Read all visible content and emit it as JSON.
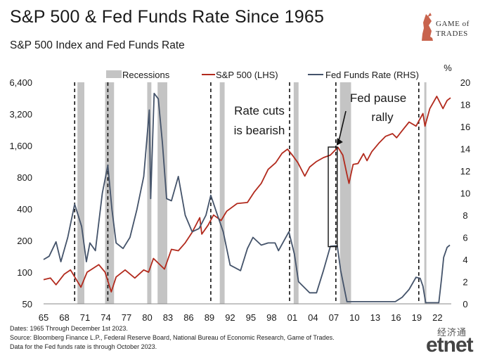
{
  "title": "S&P 500 & Fed Funds Rate Since 1965",
  "subtitle": "S&P 500 Index and Fed Funds Rate",
  "logo": {
    "line1": "GAME of",
    "line2": "TRADES"
  },
  "footnotes": [
    "Dates: 1965 Through December 1st 2023.",
    "Source: Bloomberg Finance L.P., Federal Reserve Board, National Bureau of Economic Research, Game of Trades.",
    "Data for the Fed funds rate is through October 2023."
  ],
  "watermark": {
    "cn": "经济通",
    "en": "etnet"
  },
  "chart_data": {
    "type": "line",
    "legend": [
      "Recessions",
      "S&P 500 (LHS)",
      "Fed Funds Rate (RHS)"
    ],
    "legend_position": "top",
    "left_axis": {
      "scale": "log",
      "range": [
        50,
        6400
      ],
      "ticks": [
        "6,400",
        "3,200",
        "1,600",
        "800",
        "400",
        "200",
        "100",
        "50"
      ],
      "tick_values": [
        6400,
        3200,
        1600,
        800,
        400,
        200,
        100,
        50
      ]
    },
    "right_axis": {
      "unit": "%",
      "range": [
        0,
        20
      ],
      "ticks": [
        "20",
        "18",
        "16",
        "14",
        "12",
        "10",
        "8",
        "6",
        "4",
        "2",
        "0"
      ],
      "tick_values": [
        20,
        18,
        16,
        14,
        12,
        10,
        8,
        6,
        4,
        2,
        0
      ]
    },
    "x_axis": {
      "range": [
        1965,
        2024
      ],
      "ticks": [
        "65",
        "68",
        "71",
        "74",
        "77",
        "80",
        "83",
        "86",
        "89",
        "92",
        "95",
        "98",
        "01",
        "04",
        "07",
        "10",
        "13",
        "16",
        "19",
        "22"
      ],
      "tick_years": [
        1965,
        1968,
        1971,
        1974,
        1977,
        1980,
        1983,
        1986,
        1989,
        1992,
        1995,
        1998,
        2001,
        2004,
        2007,
        2010,
        2013,
        2016,
        2019,
        2022
      ]
    },
    "recessions": [
      [
        1969.9,
        1970.9
      ],
      [
        1973.9,
        1975.2
      ],
      [
        1980.0,
        1980.6
      ],
      [
        1981.5,
        1982.9
      ],
      [
        1990.5,
        1991.2
      ],
      [
        2001.2,
        2001.9
      ],
      [
        2007.9,
        2009.5
      ],
      [
        2020.1,
        2020.4
      ]
    ],
    "rate_cut_markers": [
      1969.5,
      1974.3,
      1989.2,
      2000.6,
      2007.3,
      2019.3
    ],
    "annotations": [
      {
        "text": "Rate cuts\nis bearish"
      },
      {
        "text": "Fed pause\nrally"
      }
    ],
    "highlight_box": {
      "x_range": [
        2006.2,
        2007.5
      ],
      "sp500_range": [
        175,
        1550
      ]
    },
    "series": [
      {
        "name": "S&P 500 (LHS)",
        "color": "#b22a1d",
        "axis": "left",
        "points": [
          [
            1965,
            85
          ],
          [
            1966,
            88
          ],
          [
            1966.8,
            76
          ],
          [
            1968,
            96
          ],
          [
            1968.9,
            105
          ],
          [
            1970.4,
            72
          ],
          [
            1971.3,
            100
          ],
          [
            1973.0,
            118
          ],
          [
            1973.9,
            100
          ],
          [
            1974.8,
            65
          ],
          [
            1975.5,
            90
          ],
          [
            1976.8,
            105
          ],
          [
            1978.2,
            88
          ],
          [
            1979.5,
            105
          ],
          [
            1980.2,
            100
          ],
          [
            1980.9,
            135
          ],
          [
            1982.5,
            107
          ],
          [
            1983.5,
            165
          ],
          [
            1984.5,
            160
          ],
          [
            1985.5,
            190
          ],
          [
            1986.5,
            240
          ],
          [
            1987.6,
            330
          ],
          [
            1987.9,
            230
          ],
          [
            1988.8,
            280
          ],
          [
            1989.6,
            350
          ],
          [
            1990.7,
            310
          ],
          [
            1991.5,
            380
          ],
          [
            1993,
            450
          ],
          [
            1994.5,
            460
          ],
          [
            1995.5,
            580
          ],
          [
            1996.5,
            700
          ],
          [
            1997.5,
            950
          ],
          [
            1998.6,
            1100
          ],
          [
            1999.5,
            1350
          ],
          [
            2000.3,
            1480
          ],
          [
            2001.0,
            1300
          ],
          [
            2001.8,
            1100
          ],
          [
            2002.8,
            820
          ],
          [
            2003.5,
            1000
          ],
          [
            2004.5,
            1130
          ],
          [
            2005.5,
            1230
          ],
          [
            2006.5,
            1300
          ],
          [
            2007.6,
            1540
          ],
          [
            2008.3,
            1300
          ],
          [
            2008.9,
            850
          ],
          [
            2009.2,
            700
          ],
          [
            2009.8,
            1060
          ],
          [
            2010.5,
            1080
          ],
          [
            2011.3,
            1340
          ],
          [
            2011.8,
            1150
          ],
          [
            2012.5,
            1400
          ],
          [
            2013.5,
            1680
          ],
          [
            2014.5,
            1960
          ],
          [
            2015.5,
            2080
          ],
          [
            2016.1,
            1900
          ],
          [
            2016.9,
            2220
          ],
          [
            2017.9,
            2680
          ],
          [
            2018.9,
            2450
          ],
          [
            2019.9,
            3230
          ],
          [
            2020.2,
            2450
          ],
          [
            2020.9,
            3600
          ],
          [
            2021.9,
            4700
          ],
          [
            2022.8,
            3600
          ],
          [
            2023.4,
            4300
          ],
          [
            2023.9,
            4550
          ]
        ]
      },
      {
        "name": "Fed Funds Rate (RHS)",
        "color": "#44536a",
        "axis": "right",
        "points": [
          [
            1965,
            4.0
          ],
          [
            1965.8,
            4.3
          ],
          [
            1966.8,
            5.6
          ],
          [
            1967.5,
            3.8
          ],
          [
            1968.5,
            6.0
          ],
          [
            1969.5,
            9.0
          ],
          [
            1970.5,
            7.0
          ],
          [
            1971.2,
            3.8
          ],
          [
            1971.7,
            5.5
          ],
          [
            1972.5,
            4.8
          ],
          [
            1973.5,
            10.0
          ],
          [
            1974.3,
            12.5
          ],
          [
            1974.9,
            8.5
          ],
          [
            1975.5,
            5.5
          ],
          [
            1976.5,
            5.0
          ],
          [
            1977.5,
            6.0
          ],
          [
            1978.5,
            8.5
          ],
          [
            1979.5,
            11.5
          ],
          [
            1980.3,
            17.5
          ],
          [
            1980.5,
            9.5
          ],
          [
            1981.0,
            19.0
          ],
          [
            1981.6,
            18.5
          ],
          [
            1982.2,
            14.5
          ],
          [
            1982.8,
            9.5
          ],
          [
            1983.5,
            9.3
          ],
          [
            1984.5,
            11.5
          ],
          [
            1985.5,
            8.0
          ],
          [
            1986.5,
            6.5
          ],
          [
            1987.5,
            6.8
          ],
          [
            1988.5,
            8.0
          ],
          [
            1989.2,
            9.8
          ],
          [
            1990.0,
            8.3
          ],
          [
            1991.0,
            6.5
          ],
          [
            1992.0,
            3.5
          ],
          [
            1993.5,
            3.0
          ],
          [
            1994.5,
            5.0
          ],
          [
            1995.3,
            6.0
          ],
          [
            1996.5,
            5.3
          ],
          [
            1997.5,
            5.5
          ],
          [
            1998.5,
            5.5
          ],
          [
            1999.0,
            4.8
          ],
          [
            2000.5,
            6.5
          ],
          [
            2001.3,
            4.5
          ],
          [
            2001.9,
            2.0
          ],
          [
            2003.5,
            1.0
          ],
          [
            2004.5,
            1.0
          ],
          [
            2005.5,
            3.0
          ],
          [
            2006.5,
            5.2
          ],
          [
            2007.5,
            5.25
          ],
          [
            2008.0,
            3.0
          ],
          [
            2008.9,
            0.2
          ],
          [
            2015.9,
            0.2
          ],
          [
            2016.9,
            0.6
          ],
          [
            2017.9,
            1.3
          ],
          [
            2018.9,
            2.4
          ],
          [
            2019.5,
            2.3
          ],
          [
            2019.9,
            1.6
          ],
          [
            2020.3,
            0.1
          ],
          [
            2022.2,
            0.1
          ],
          [
            2022.6,
            2.3
          ],
          [
            2022.9,
            4.2
          ],
          [
            2023.4,
            5.1
          ],
          [
            2023.8,
            5.3
          ]
        ]
      }
    ]
  }
}
